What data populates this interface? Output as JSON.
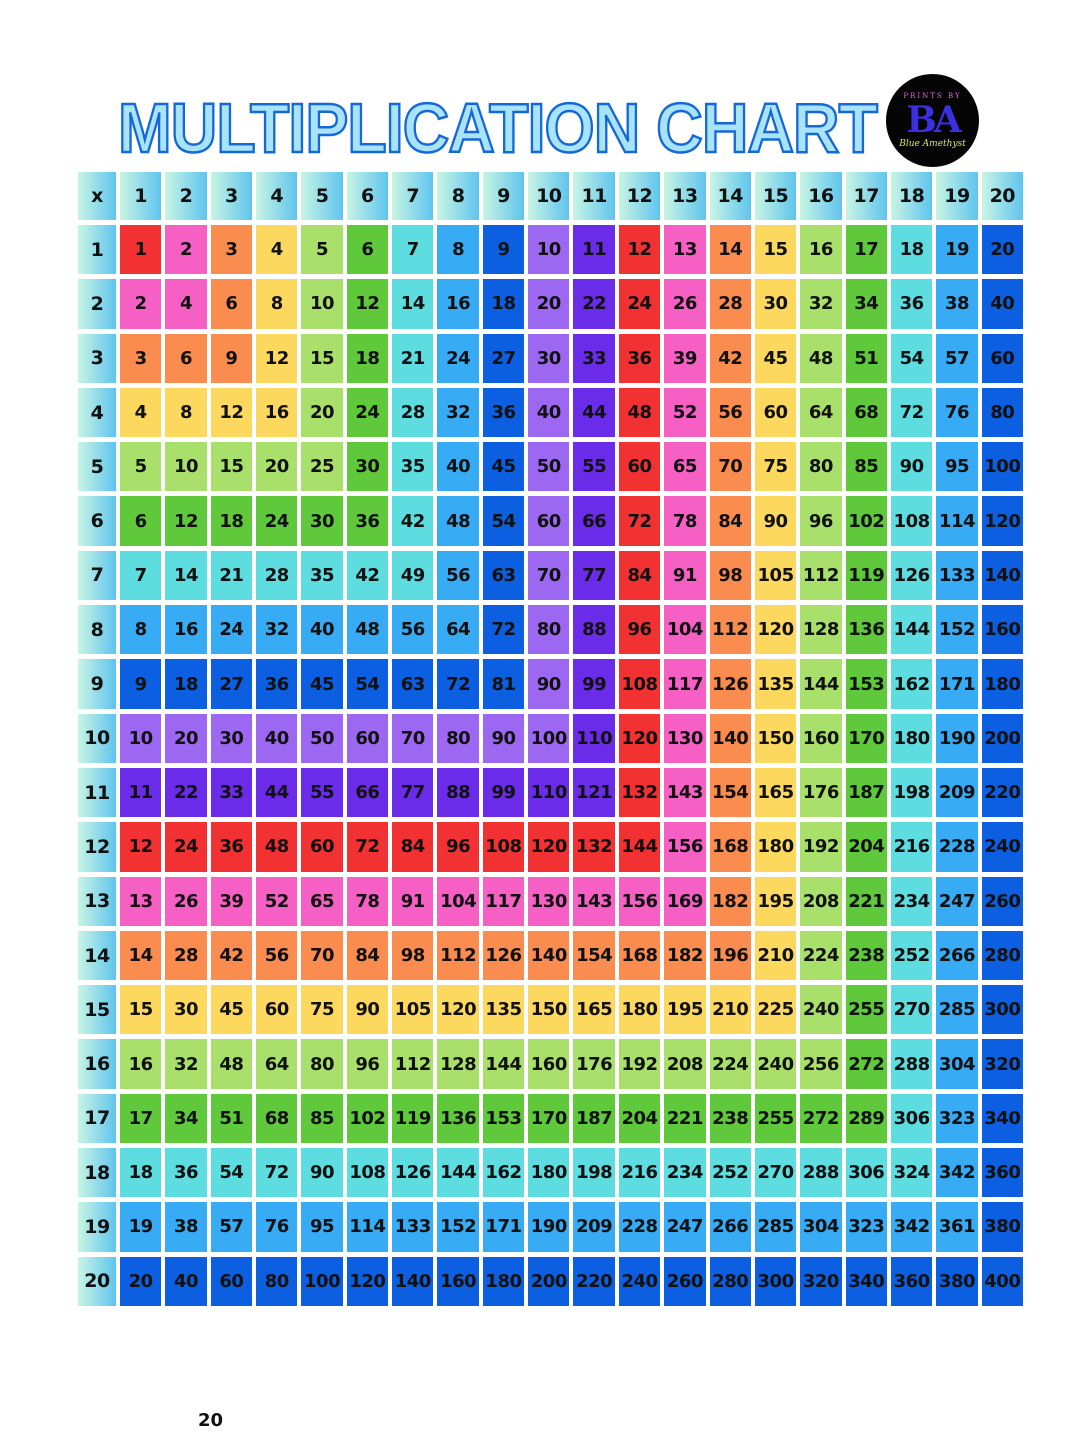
{
  "title": "MULTIPLICATION CHART",
  "logo": {
    "top_text": "PRINTS BY",
    "letters": "BA",
    "script": "Blue Amethyst"
  },
  "page_number": "20",
  "palette": [
    "#f23232",
    "#f660c4",
    "#f98c4e",
    "#fcd95e",
    "#a9e06c",
    "#5fc93b",
    "#5ddde0",
    "#37abf4",
    "#0b5fe0",
    "#9d68f1",
    "#6b2cea"
  ],
  "table": {
    "corner": "x",
    "col_headers": [
      "1",
      "2",
      "3",
      "4",
      "5",
      "6",
      "7",
      "8",
      "9",
      "10",
      "11",
      "12",
      "13",
      "14",
      "15",
      "16",
      "17",
      "18",
      "19",
      "20"
    ],
    "row_headers": [
      "1",
      "2",
      "3",
      "4",
      "5",
      "6",
      "7",
      "8",
      "9",
      "10",
      "11",
      "12",
      "13",
      "14",
      "15",
      "16",
      "17",
      "18",
      "19",
      "20"
    ],
    "rows": [
      [
        "1",
        "2",
        "3",
        "4",
        "5",
        "6",
        "7",
        "8",
        "9",
        "10",
        "11",
        "12",
        "13",
        "14",
        "15",
        "16",
        "17",
        "18",
        "19",
        "20"
      ],
      [
        "2",
        "4",
        "6",
        "8",
        "10",
        "12",
        "14",
        "16",
        "18",
        "20",
        "22",
        "24",
        "26",
        "28",
        "30",
        "32",
        "34",
        "36",
        "38",
        "40"
      ],
      [
        "3",
        "6",
        "9",
        "12",
        "15",
        "18",
        "21",
        "24",
        "27",
        "30",
        "33",
        "36",
        "39",
        "42",
        "45",
        "48",
        "51",
        "54",
        "57",
        "60"
      ],
      [
        "4",
        "8",
        "12",
        "16",
        "20",
        "24",
        "28",
        "32",
        "36",
        "40",
        "44",
        "48",
        "52",
        "56",
        "60",
        "64",
        "68",
        "72",
        "76",
        "80"
      ],
      [
        "5",
        "10",
        "15",
        "20",
        "25",
        "30",
        "35",
        "40",
        "45",
        "50",
        "55",
        "60",
        "65",
        "70",
        "75",
        "80",
        "85",
        "90",
        "95",
        "100"
      ],
      [
        "6",
        "12",
        "18",
        "24",
        "30",
        "36",
        "42",
        "48",
        "54",
        "60",
        "66",
        "72",
        "78",
        "84",
        "90",
        "96",
        "102",
        "108",
        "114",
        "120"
      ],
      [
        "7",
        "14",
        "21",
        "28",
        "35",
        "42",
        "49",
        "56",
        "63",
        "70",
        "77",
        "84",
        "91",
        "98",
        "105",
        "112",
        "119",
        "126",
        "133",
        "140"
      ],
      [
        "8",
        "16",
        "24",
        "32",
        "40",
        "48",
        "56",
        "64",
        "72",
        "80",
        "88",
        "96",
        "104",
        "112",
        "120",
        "128",
        "136",
        "144",
        "152",
        "160"
      ],
      [
        "9",
        "18",
        "27",
        "36",
        "45",
        "54",
        "63",
        "72",
        "81",
        "90",
        "99",
        "108",
        "117",
        "126",
        "135",
        "144",
        "153",
        "162",
        "171",
        "180"
      ],
      [
        "10",
        "20",
        "30",
        "40",
        "50",
        "60",
        "70",
        "80",
        "90",
        "100",
        "110",
        "120",
        "130",
        "140",
        "150",
        "160",
        "170",
        "180",
        "190",
        "200"
      ],
      [
        "11",
        "22",
        "33",
        "44",
        "55",
        "66",
        "77",
        "88",
        "99",
        "110",
        "121",
        "132",
        "143",
        "154",
        "165",
        "176",
        "187",
        "198",
        "209",
        "220"
      ],
      [
        "12",
        "24",
        "36",
        "48",
        "60",
        "72",
        "84",
        "96",
        "108",
        "120",
        "132",
        "144",
        "156",
        "168",
        "180",
        "192",
        "204",
        "216",
        "228",
        "240"
      ],
      [
        "13",
        "26",
        "39",
        "52",
        "65",
        "78",
        "91",
        "104",
        "117",
        "130",
        "143",
        "156",
        "169",
        "182",
        "195",
        "208",
        "221",
        "234",
        "247",
        "260"
      ],
      [
        "14",
        "28",
        "42",
        "56",
        "70",
        "84",
        "98",
        "112",
        "126",
        "140",
        "154",
        "168",
        "182",
        "196",
        "210",
        "224",
        "238",
        "252",
        "266",
        "280"
      ],
      [
        "15",
        "30",
        "45",
        "60",
        "75",
        "90",
        "105",
        "120",
        "135",
        "150",
        "165",
        "180",
        "195",
        "210",
        "225",
        "240",
        "255",
        "270",
        "285",
        "300"
      ],
      [
        "16",
        "32",
        "48",
        "64",
        "80",
        "96",
        "112",
        "128",
        "144",
        "160",
        "176",
        "192",
        "208",
        "224",
        "240",
        "256",
        "272",
        "288",
        "304",
        "320"
      ],
      [
        "17",
        "34",
        "51",
        "68",
        "85",
        "102",
        "119",
        "136",
        "153",
        "170",
        "187",
        "204",
        "221",
        "238",
        "255",
        "272",
        "289",
        "306",
        "323",
        "340"
      ],
      [
        "18",
        "36",
        "54",
        "72",
        "90",
        "108",
        "126",
        "144",
        "162",
        "180",
        "198",
        "216",
        "234",
        "252",
        "270",
        "288",
        "306",
        "324",
        "342",
        "360"
      ],
      [
        "19",
        "38",
        "57",
        "76",
        "95",
        "114",
        "133",
        "152",
        "171",
        "190",
        "209",
        "228",
        "247",
        "266",
        "285",
        "304",
        "323",
        "342",
        "361",
        "380"
      ],
      [
        "20",
        "40",
        "60",
        "80",
        "100",
        "120",
        "140",
        "160",
        "180",
        "200",
        "220",
        "240",
        "260",
        "280",
        "300",
        "320",
        "340",
        "360",
        "380",
        "400"
      ]
    ]
  }
}
